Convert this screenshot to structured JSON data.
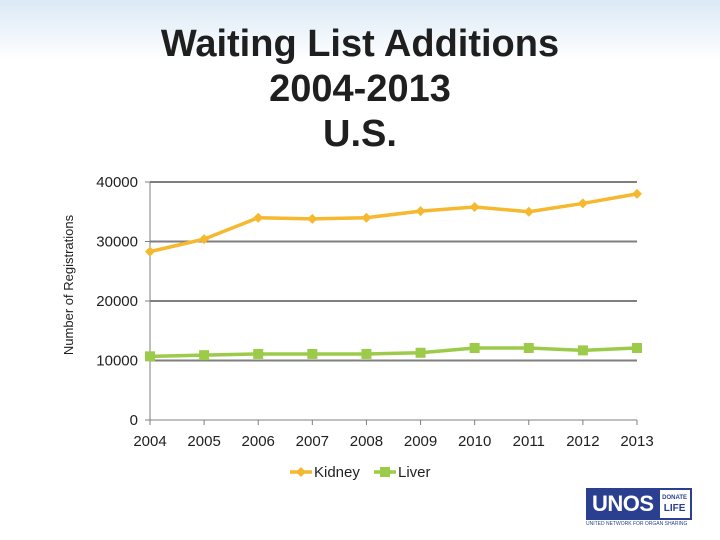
{
  "title": {
    "line1": "Waiting List Additions",
    "line2": "2004-2013",
    "line3": "U.S."
  },
  "logo": {
    "main": "UNOS",
    "side_top": "DONATE",
    "side_bottom": "LIFE",
    "tagline": "UNITED NETWORK FOR ORGAN SHARING"
  },
  "colors": {
    "kidney": "#f5b82e",
    "liver": "#9ccb4a",
    "grid": "#7f7f7f",
    "axis": "#7f7f7f"
  },
  "chart_data": {
    "type": "line",
    "title": "Waiting List Additions 2004-2013 U.S.",
    "xlabel": "",
    "ylabel": "Number of Registrations",
    "categories": [
      "2004",
      "2005",
      "2006",
      "2007",
      "2008",
      "2009",
      "2010",
      "2011",
      "2012",
      "2013"
    ],
    "ylim": [
      0,
      40000
    ],
    "yticks": [
      "0",
      "10000",
      "20000",
      "30000",
      "40000"
    ],
    "grid": true,
    "legend": "bottom",
    "series": [
      {
        "name": "Kidney",
        "marker": "diamond",
        "values": [
          28300,
          30400,
          34000,
          33800,
          34000,
          35100,
          35800,
          35000,
          36400,
          38000
        ]
      },
      {
        "name": "Liver",
        "marker": "square",
        "values": [
          10700,
          10900,
          11100,
          11100,
          11100,
          11300,
          12100,
          12100,
          11700,
          12100
        ]
      }
    ]
  }
}
